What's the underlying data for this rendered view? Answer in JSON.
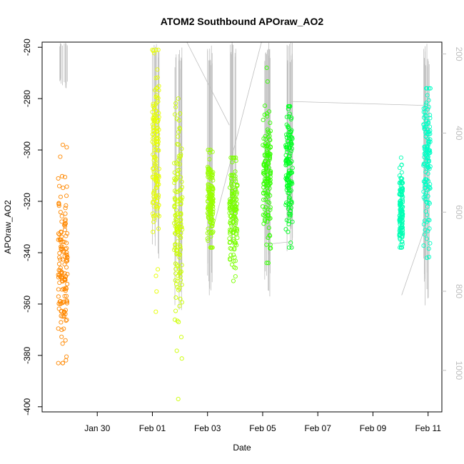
{
  "chart_data": {
    "type": "scatter",
    "title": "ATOM2 Southbound APOraw_AO2",
    "xlabel": "Date",
    "ylabel": "APOraw_AO2",
    "x_axis": "date",
    "xlim": [
      "2018-01-28T00:00",
      "2018-02-11T12:00"
    ],
    "ylim": [
      -402,
      -258
    ],
    "x_ticks": [
      {
        "date": "2018-01-30T00:00",
        "label": "Jan 30"
      },
      {
        "date": "2018-02-01T00:00",
        "label": "Feb 01"
      },
      {
        "date": "2018-02-03T00:00",
        "label": "Feb 03"
      },
      {
        "date": "2018-02-05T00:00",
        "label": "Feb 05"
      },
      {
        "date": "2018-02-07T00:00",
        "label": "Feb 07"
      },
      {
        "date": "2018-02-09T00:00",
        "label": "Feb 09"
      },
      {
        "date": "2018-02-11T00:00",
        "label": "Feb 11"
      }
    ],
    "y_ticks": [
      -260,
      -280,
      -300,
      -320,
      -340,
      -360,
      -380,
      -400
    ],
    "y2_ticks": [
      200,
      400,
      600,
      800,
      1000
    ],
    "y2lim": [
      170,
      1105
    ],
    "grid": false,
    "legend": "none",
    "secondary_color": "#bebebe",
    "secondary_series": [
      {
        "start": "2018-01-28T14:00",
        "end": "2018-01-28T22:00",
        "range": [
          170,
          290
        ]
      },
      {
        "start": "2018-02-01T00:00",
        "end": "2018-02-01T06:00",
        "range": [
          170,
          720
        ]
      },
      {
        "start": "2018-02-01T19:00",
        "end": "2018-02-02T02:00",
        "range": [
          170,
          850
        ]
      },
      {
        "start": "2018-02-03T00:00",
        "end": "2018-02-03T05:00",
        "range": [
          170,
          850
        ]
      },
      {
        "start": "2018-02-03T19:00",
        "end": "2018-02-04T02:00",
        "range": [
          170,
          700
        ]
      },
      {
        "start": "2018-02-05T00:00",
        "end": "2018-02-05T07:00",
        "range": [
          170,
          820
        ]
      },
      {
        "start": "2018-02-05T20:00",
        "end": "2018-02-06T02:00",
        "range": [
          170,
          730
        ]
      },
      {
        "start": "2018-02-10T20:00",
        "end": "2018-02-11T02:00",
        "range": [
          170,
          850
        ]
      }
    ],
    "secondary_links": [
      {
        "x": [
          "2018-02-02T06:00",
          "2018-02-03T19:00"
        ],
        "y": [
          170,
          380
        ]
      },
      {
        "x": [
          "2018-02-03T05:00",
          "2018-02-04T23:00"
        ],
        "y": [
          640,
          170
        ]
      },
      {
        "x": [
          "2018-02-05T07:00",
          "2018-02-06T00:00"
        ],
        "y": [
          680,
          675
        ]
      },
      {
        "x": [
          "2018-02-06T00:00",
          "2018-02-10T20:00"
        ],
        "y": [
          320,
          330
        ]
      },
      {
        "x": [
          "2018-02-10T01:00",
          "2018-02-10T20:00"
        ],
        "y": [
          810,
          650
        ]
      }
    ],
    "series": [
      {
        "start": "2018-01-28T14:00",
        "end": "2018-01-28T22:00",
        "color": "#ff8800",
        "center": -345,
        "spread": 16,
        "ymin": -383,
        "ymax": -298
      },
      {
        "start": "2018-02-01T00:00",
        "end": "2018-02-01T06:00",
        "color": "#e6ff00",
        "center": -303,
        "spread": 18,
        "ymin": -363,
        "ymax": -261
      },
      {
        "start": "2018-02-01T19:00",
        "end": "2018-02-02T02:00",
        "color": "#ccff00",
        "center": -330,
        "spread": 20,
        "ymin": -397,
        "ymax": -280
      },
      {
        "start": "2018-02-03T00:00",
        "end": "2018-02-03T05:00",
        "color": "#99ff00",
        "center": -320,
        "spread": 8,
        "ymin": -338,
        "ymax": -300
      },
      {
        "start": "2018-02-03T19:00",
        "end": "2018-02-04T02:00",
        "color": "#7aff00",
        "center": -325,
        "spread": 10,
        "ymin": -351,
        "ymax": -303
      },
      {
        "start": "2018-02-05T00:00",
        "end": "2018-02-05T07:00",
        "color": "#33ff00",
        "center": -309,
        "spread": 14,
        "ymin": -344,
        "ymax": -268
      },
      {
        "start": "2018-02-05T20:00",
        "end": "2018-02-06T02:00",
        "color": "#00ff22",
        "center": -309,
        "spread": 12,
        "ymin": -338,
        "ymax": -283
      },
      {
        "start": "2018-02-09T23:00",
        "end": "2018-02-10T02:00",
        "color": "#00ffb4",
        "center": -324,
        "spread": 8,
        "ymin": -338,
        "ymax": -303
      },
      {
        "start": "2018-02-10T20:00",
        "end": "2018-02-11T02:00",
        "color": "#00ffc6",
        "center": -305,
        "spread": 14,
        "ymin": -342,
        "ymax": -276
      }
    ]
  }
}
